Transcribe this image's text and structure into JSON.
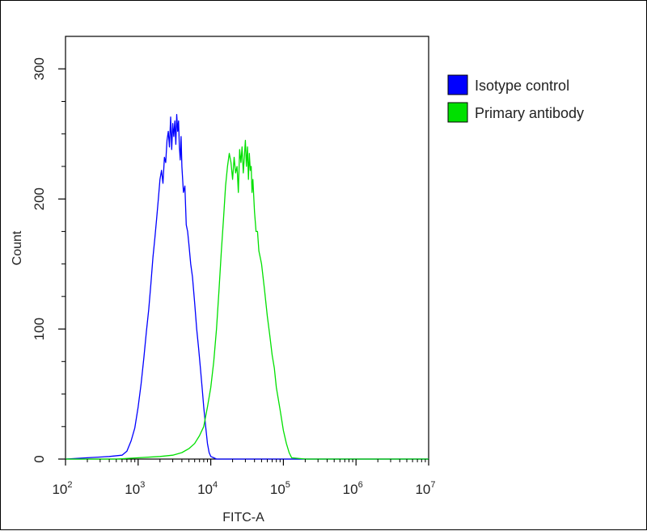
{
  "chart_data": {
    "type": "line",
    "title": "",
    "xlabel": "FITC-A",
    "ylabel": "Count",
    "x_scale": "log",
    "xlim": [
      100,
      10000000
    ],
    "ylim": [
      0,
      325
    ],
    "x_ticks": [
      {
        "value": 100,
        "base": "10",
        "exp": "2"
      },
      {
        "value": 1000,
        "base": "10",
        "exp": "3"
      },
      {
        "value": 10000,
        "base": "10",
        "exp": "4"
      },
      {
        "value": 100000,
        "base": "10",
        "exp": "5"
      },
      {
        "value": 1000000,
        "base": "10",
        "exp": "6"
      },
      {
        "value": 10000000,
        "base": "10",
        "exp": "7"
      }
    ],
    "y_ticks": [
      {
        "value": 0,
        "label": "0"
      },
      {
        "value": 100,
        "label": "100"
      },
      {
        "value": 200,
        "label": "200"
      },
      {
        "value": 300,
        "label": "300"
      }
    ],
    "grid": false,
    "legend": "right, outside plot",
    "series": [
      {
        "name": "Isotype control",
        "color": "#0000ff",
        "x": [
          100,
          200,
          400,
          600,
          700,
          800,
          900,
          1000,
          1100,
          1200,
          1300,
          1400,
          1500,
          1600,
          1700,
          1800,
          1900,
          2000,
          2100,
          2200,
          2300,
          2400,
          2500,
          2600,
          2700,
          2800,
          2900,
          3000,
          3100,
          3200,
          3300,
          3400,
          3500,
          3600,
          3700,
          3800,
          3900,
          4000,
          4200,
          4400,
          4600,
          4800,
          5000,
          5300,
          5600,
          6000,
          6400,
          6800,
          7200,
          7600,
          8000,
          8500,
          9000,
          9500,
          10000,
          11000,
          12000,
          20000,
          100000,
          10000000
        ],
        "y": [
          0,
          1,
          2,
          3,
          6,
          14,
          24,
          40,
          58,
          78,
          98,
          115,
          135,
          155,
          170,
          185,
          200,
          215,
          222,
          212,
          232,
          228,
          245,
          252,
          240,
          263,
          238,
          258,
          248,
          260,
          242,
          265,
          252,
          260,
          240,
          230,
          248,
          225,
          205,
          210,
          180,
          175,
          165,
          150,
          140,
          120,
          100,
          85,
          70,
          55,
          40,
          25,
          12,
          5,
          2,
          1,
          0,
          0,
          0,
          0
        ]
      },
      {
        "name": "Primary antibody",
        "color": "#00e000",
        "x": [
          100,
          500,
          1000,
          2000,
          3000,
          4000,
          5000,
          6000,
          7000,
          8000,
          9000,
          10000,
          11000,
          12000,
          13000,
          14000,
          15000,
          16000,
          17000,
          18000,
          19000,
          20000,
          21000,
          22000,
          23000,
          24000,
          25000,
          26000,
          27000,
          28000,
          29000,
          30000,
          31000,
          32000,
          33000,
          34000,
          35000,
          36000,
          37000,
          38000,
          40000,
          42000,
          44000,
          46000,
          48000,
          50000,
          55000,
          60000,
          65000,
          70000,
          75000,
          80000,
          90000,
          100000,
          110000,
          120000,
          130000,
          200000,
          1000000,
          10000000
        ],
        "y": [
          0,
          0,
          1,
          2,
          3,
          5,
          8,
          12,
          18,
          25,
          40,
          55,
          75,
          100,
          130,
          160,
          185,
          210,
          225,
          235,
          228,
          215,
          232,
          220,
          225,
          205,
          238,
          228,
          240,
          220,
          232,
          245,
          225,
          240,
          215,
          235,
          222,
          225,
          205,
          215,
          190,
          175,
          175,
          160,
          155,
          150,
          130,
          110,
          95,
          80,
          70,
          55,
          38,
          22,
          12,
          5,
          1,
          0,
          0,
          0
        ]
      }
    ]
  }
}
